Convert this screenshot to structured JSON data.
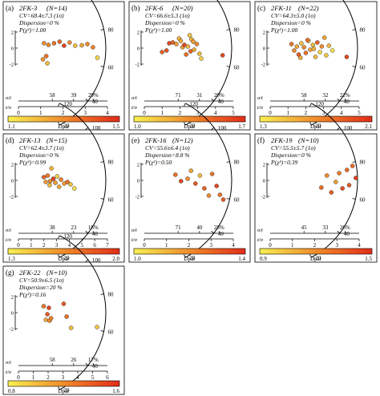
{
  "chart_data": [
    {
      "type": "scatter",
      "panel": "a",
      "title": "2FK-3",
      "n": "(N=14)",
      "cv": "CV=68.4±7.3 (1σ)",
      "dispersion": "Dispersion=0 %",
      "pchi": "P(χ²)=1.00",
      "y_ticks": [
        "2",
        "0",
        "-2"
      ],
      "y_axis_label": "σ/t",
      "x_axis_label": "t/σ",
      "x_ticks": [
        "0",
        "1",
        "2",
        "3",
        "4"
      ],
      "x_max": 4,
      "radial_ticks": [
        "120",
        "100",
        "80",
        "60",
        "40",
        "20"
      ],
      "radial_values": [
        120,
        100,
        80,
        60,
        40,
        20
      ],
      "radial_min": 20,
      "radial_max": 120,
      "pct_ticks": [
        "58",
        "39",
        "29%"
      ],
      "pct_values": [
        58,
        39,
        29
      ],
      "colorbar": {
        "min_label": "1.1",
        "max_label": "1.5",
        "title": "Dpar",
        "min": 1.1,
        "max": 1.5
      },
      "points": [
        {
          "x": 1.15,
          "y": 0.6,
          "c": 1.3
        },
        {
          "x": 1.35,
          "y": 0.4,
          "c": 1.3
        },
        {
          "x": 1.6,
          "y": 0.6,
          "c": 1.35
        },
        {
          "x": 1.85,
          "y": 0.8,
          "c": 1.38
        },
        {
          "x": 2.05,
          "y": 0.3,
          "c": 1.45
        },
        {
          "x": 2.3,
          "y": 0.7,
          "c": 1.3
        },
        {
          "x": 2.55,
          "y": 0.3,
          "c": 1.2
        },
        {
          "x": 2.85,
          "y": 0.35,
          "c": 1.25
        },
        {
          "x": 3.1,
          "y": 0.5,
          "c": 1.3
        },
        {
          "x": 3.35,
          "y": 0.1,
          "c": 1.32
        },
        {
          "x": 3.55,
          "y": -1.2,
          "c": 1.15
        },
        {
          "x": 1.25,
          "y": -1.0,
          "c": 1.35
        },
        {
          "x": 1.1,
          "y": -1.4,
          "c": 1.28
        },
        {
          "x": 1.3,
          "y": -1.9,
          "c": 1.2
        }
      ]
    },
    {
      "type": "scatter",
      "panel": "b",
      "title": "2FK-6",
      "n": "(N=20)",
      "cv": "CV=66.6±5.3 (1σ)",
      "dispersion": "Dispersion=0 %",
      "pchi": "P(χ²)=1.00",
      "y_ticks": [
        "2",
        "0",
        "-2"
      ],
      "y_axis_label": "σ/t",
      "x_axis_label": "t/σ",
      "x_ticks": [
        "0",
        "1",
        "2",
        "3",
        "4",
        "5"
      ],
      "x_max": 5,
      "radial_ticks": [
        "120",
        "100",
        "80",
        "60",
        "40",
        "20"
      ],
      "radial_values": [
        120,
        100,
        80,
        60,
        40,
        20
      ],
      "radial_min": 20,
      "radial_max": 120,
      "pct_ticks": [
        "71",
        "31",
        "20%"
      ],
      "pct_values": [
        71,
        31,
        20
      ],
      "colorbar": {
        "min_label": "1.0",
        "max_label": "1.7",
        "title": "Dpar",
        "min": 1.0,
        "max": 1.7
      },
      "points": [
        {
          "x": 1.0,
          "y": -0.5,
          "c": 1.5
        },
        {
          "x": 1.25,
          "y": -0.3,
          "c": 1.55
        },
        {
          "x": 1.4,
          "y": 0.6,
          "c": 1.6
        },
        {
          "x": 1.6,
          "y": 0.7,
          "c": 1.5
        },
        {
          "x": 1.8,
          "y": 0.5,
          "c": 1.3
        },
        {
          "x": 1.95,
          "y": 1.2,
          "c": 1.2
        },
        {
          "x": 2.05,
          "y": 0.9,
          "c": 1.25
        },
        {
          "x": 2.15,
          "y": 0.1,
          "c": 1.3
        },
        {
          "x": 2.25,
          "y": 0.4,
          "c": 1.6
        },
        {
          "x": 2.35,
          "y": -0.8,
          "c": 1.45
        },
        {
          "x": 2.45,
          "y": 0.2,
          "c": 1.2
        },
        {
          "x": 2.55,
          "y": 1.6,
          "c": 1.15
        },
        {
          "x": 2.65,
          "y": 1.1,
          "c": 1.2
        },
        {
          "x": 2.75,
          "y": 0.8,
          "c": 1.3
        },
        {
          "x": 2.8,
          "y": -0.2,
          "c": 1.25
        },
        {
          "x": 2.95,
          "y": 0.5,
          "c": 1.35
        },
        {
          "x": 3.1,
          "y": -0.7,
          "c": 1.2
        },
        {
          "x": 3.2,
          "y": -1.3,
          "c": 1.1
        },
        {
          "x": 2.6,
          "y": -0.4,
          "c": 1.5
        },
        {
          "x": 4.4,
          "y": -0.9,
          "c": 1.6
        }
      ]
    },
    {
      "type": "scatter",
      "panel": "c",
      "title": "2FK-11",
      "n": "(N=22)",
      "cv": "CV=64.3±5.0 (1σ)",
      "dispersion": "Dispersion=0 %",
      "pchi": "P(χ²)=1.00",
      "y_ticks": [
        "2",
        "0",
        "-2"
      ],
      "y_axis_label": "σ/t",
      "x_axis_label": "t/σ",
      "x_ticks": [
        "0",
        "1",
        "2",
        "3",
        "4",
        "5"
      ],
      "x_max": 5,
      "radial_ticks": [
        "120",
        "100",
        "80",
        "60",
        "40",
        "20"
      ],
      "radial_values": [
        120,
        100,
        80,
        60,
        40,
        20
      ],
      "radial_min": 20,
      "radial_max": 120,
      "pct_ticks": [
        "58",
        "32",
        "22%"
      ],
      "pct_values": [
        58,
        32,
        22
      ],
      "colorbar": {
        "min_label": "1.3",
        "max_label": "2.1",
        "title": "Dpar",
        "min": 1.3,
        "max": 2.1
      },
      "points": [
        {
          "x": 1.2,
          "y": 0.5,
          "c": 1.8
        },
        {
          "x": 1.35,
          "y": -0.3,
          "c": 1.7
        },
        {
          "x": 1.5,
          "y": 0.2,
          "c": 1.6
        },
        {
          "x": 1.6,
          "y": -0.8,
          "c": 1.9
        },
        {
          "x": 1.75,
          "y": 0.6,
          "c": 1.5
        },
        {
          "x": 1.9,
          "y": 0.1,
          "c": 1.7
        },
        {
          "x": 2.0,
          "y": -0.6,
          "c": 1.8
        },
        {
          "x": 2.15,
          "y": 0.9,
          "c": 1.4
        },
        {
          "x": 2.25,
          "y": -0.2,
          "c": 1.6
        },
        {
          "x": 2.4,
          "y": 0.4,
          "c": 1.5
        },
        {
          "x": 2.55,
          "y": -1.1,
          "c": 1.5
        },
        {
          "x": 2.65,
          "y": 0.7,
          "c": 1.9
        },
        {
          "x": 2.8,
          "y": -0.5,
          "c": 1.4
        },
        {
          "x": 2.9,
          "y": 0.2,
          "c": 1.7
        },
        {
          "x": 3.05,
          "y": 1.3,
          "c": 1.6
        },
        {
          "x": 3.15,
          "y": -0.9,
          "c": 1.45
        },
        {
          "x": 3.3,
          "y": 0.3,
          "c": 1.5
        },
        {
          "x": 1.7,
          "y": -1.2,
          "c": 1.6
        },
        {
          "x": 2.1,
          "y": 1.0,
          "c": 1.8
        },
        {
          "x": 2.45,
          "y": -0.1,
          "c": 1.55
        },
        {
          "x": 3.5,
          "y": -0.3,
          "c": 1.35
        },
        {
          "x": 4.3,
          "y": -1.1,
          "c": 2.0
        }
      ]
    },
    {
      "type": "scatter",
      "panel": "d",
      "title": "2FK-13",
      "n": "(N=15)",
      "cv": "CV=62.4±3.7 (1σ)",
      "dispersion": "Dispersion=0 %",
      "pchi": "P(χ²)=0.99",
      "y_ticks": [
        "2",
        "0",
        "-2"
      ],
      "y_axis_label": "σ/t",
      "x_axis_label": "t/σ",
      "x_ticks": [
        "0",
        "1",
        "2",
        "3",
        "4",
        "5",
        "6",
        "7"
      ],
      "x_max": 7,
      "radial_ticks": [
        "120",
        "100",
        "80",
        "60",
        "40",
        "20"
      ],
      "radial_values": [
        120,
        100,
        80,
        60,
        40,
        20
      ],
      "radial_min": 20,
      "radial_max": 120,
      "pct_ticks": [
        "38",
        "23",
        "16%"
      ],
      "pct_values": [
        38,
        23,
        16
      ],
      "colorbar": {
        "min_label": "1.3",
        "max_label": "2.0",
        "title": "Dpar",
        "min": 1.3,
        "max": 2.0
      },
      "points": [
        {
          "x": 2.0,
          "y": 0.4,
          "c": 1.8
        },
        {
          "x": 2.15,
          "y": -0.2,
          "c": 1.6
        },
        {
          "x": 2.3,
          "y": 0.6,
          "c": 1.7
        },
        {
          "x": 2.45,
          "y": -0.6,
          "c": 1.5
        },
        {
          "x": 2.6,
          "y": 1.5,
          "c": 1.5
        },
        {
          "x": 2.75,
          "y": 0.2,
          "c": 1.9
        },
        {
          "x": 2.9,
          "y": -0.3,
          "c": 1.6
        },
        {
          "x": 3.05,
          "y": 0.5,
          "c": 1.4
        },
        {
          "x": 3.2,
          "y": -0.8,
          "c": 1.55
        },
        {
          "x": 3.35,
          "y": 0.1,
          "c": 1.7
        },
        {
          "x": 3.6,
          "y": -0.4,
          "c": 1.6
        },
        {
          "x": 3.85,
          "y": -0.2,
          "c": 1.75
        },
        {
          "x": 4.1,
          "y": -0.5,
          "c": 1.45
        },
        {
          "x": 4.4,
          "y": -1.0,
          "c": 1.35
        },
        {
          "x": 2.5,
          "y": -0.1,
          "c": 1.65
        }
      ]
    },
    {
      "type": "scatter",
      "panel": "e",
      "title": "2FK-16",
      "n": "(N=12)",
      "cv": "CV=55.6±6.4 (1σ)",
      "dispersion": "Dispersion=8.8 %",
      "pchi": "P(χ²)=0.50",
      "y_ticks": [
        "2",
        "0",
        "-2"
      ],
      "y_axis_label": "σ/t",
      "x_axis_label": "t/σ",
      "x_ticks": [
        "0",
        "1",
        "2",
        "3",
        "4"
      ],
      "x_max": 4,
      "radial_ticks": [
        "120",
        "100",
        "80",
        "60",
        "40",
        "20"
      ],
      "radial_values": [
        120,
        100,
        80,
        60,
        40,
        20
      ],
      "radial_min": 20,
      "radial_max": 120,
      "pct_ticks": [
        "71",
        "40",
        "28%"
      ],
      "pct_values": [
        71,
        40,
        28
      ],
      "colorbar": {
        "min_label": "1.0",
        "max_label": "1.4",
        "title": "Dpar",
        "min": 1.0,
        "max": 1.4
      },
      "points": [
        {
          "x": 1.4,
          "y": 0.7,
          "c": 1.25
        },
        {
          "x": 1.65,
          "y": -0.1,
          "c": 1.35
        },
        {
          "x": 1.95,
          "y": 0.2,
          "c": 1.2
        },
        {
          "x": 2.1,
          "y": 1.2,
          "c": 1.15
        },
        {
          "x": 2.3,
          "y": -0.4,
          "c": 1.3
        },
        {
          "x": 2.5,
          "y": 0.6,
          "c": 1.1
        },
        {
          "x": 2.7,
          "y": -1.0,
          "c": 1.3
        },
        {
          "x": 2.9,
          "y": -1.9,
          "c": 1.2
        },
        {
          "x": 3.05,
          "y": 0.8,
          "c": 1.25
        },
        {
          "x": 3.25,
          "y": -0.7,
          "c": 1.35
        },
        {
          "x": 3.4,
          "y": -1.8,
          "c": 1.25
        },
        {
          "x": 3.55,
          "y": -2.4,
          "c": 1.3
        }
      ]
    },
    {
      "type": "scatter",
      "panel": "f",
      "title": "2FK-19",
      "n": "(N=10)",
      "cv": "CV=55.5±5.7 (1σ)",
      "dispersion": "Dispersion=0 %",
      "pchi": "P(χ²)=0.39",
      "y_ticks": [
        "2",
        "0",
        "-2"
      ],
      "y_axis_label": "σ/t",
      "x_axis_label": "t/σ",
      "x_ticks": [
        "0",
        "1",
        "2",
        "3",
        "4"
      ],
      "x_max": 4,
      "radial_ticks": [
        "120",
        "100",
        "80",
        "60",
        "40",
        "20"
      ],
      "radial_values": [
        120,
        100,
        80,
        60,
        40,
        20
      ],
      "radial_min": 20,
      "radial_max": 120,
      "pct_ticks": [
        "45",
        "33",
        "26%"
      ],
      "pct_values": [
        45,
        33,
        26
      ],
      "colorbar": {
        "min_label": "0.9",
        "max_label": "1.5",
        "title": "Dpar",
        "min": 0.9,
        "max": 1.5
      },
      "points": [
        {
          "x": 2.3,
          "y": -0.9,
          "c": 1.3
        },
        {
          "x": 2.55,
          "y": 0.6,
          "c": 1.2
        },
        {
          "x": 2.75,
          "y": -1.5,
          "c": 1.35
        },
        {
          "x": 2.95,
          "y": -0.2,
          "c": 1.15
        },
        {
          "x": 3.1,
          "y": 0.9,
          "c": 1.25
        },
        {
          "x": 3.25,
          "y": -1.0,
          "c": 1.4
        },
        {
          "x": 3.45,
          "y": 1.3,
          "c": 1.3
        },
        {
          "x": 3.55,
          "y": -0.6,
          "c": 1.35
        },
        {
          "x": 3.7,
          "y": 1.8,
          "c": 1.3
        },
        {
          "x": 3.85,
          "y": 0.3,
          "c": 1.45
        }
      ]
    },
    {
      "type": "scatter",
      "panel": "g",
      "title": "2FK-22",
      "n": "(N=10)",
      "cv": "CV=50.9±6.5 (1σ)",
      "dispersion": "Dispersion=20 %",
      "pchi": "P(χ²)=0.16",
      "y_ticks": [
        "2",
        "0",
        "-2"
      ],
      "y_axis_label": "σ/t",
      "x_axis_label": "t/σ",
      "x_ticks": [
        "0",
        "1",
        "2",
        "3",
        "4",
        "5",
        "6"
      ],
      "x_max": 6,
      "radial_ticks": [
        "120",
        "100",
        "80",
        "60",
        "40",
        "20"
      ],
      "radial_values": [
        120,
        100,
        80,
        60,
        40,
        20
      ],
      "radial_min": 20,
      "radial_max": 120,
      "pct_ticks": [
        "58",
        "26",
        "17%"
      ],
      "pct_values": [
        58,
        26,
        17
      ],
      "colorbar": {
        "min_label": "0.8",
        "max_label": "1.6",
        "title": "Dpar",
        "min": 0.8,
        "max": 1.6
      },
      "points": [
        {
          "x": 1.7,
          "y": 0.8,
          "c": 1.3
        },
        {
          "x": 1.85,
          "y": -0.9,
          "c": 1.1
        },
        {
          "x": 1.95,
          "y": -0.2,
          "c": 1.4
        },
        {
          "x": 2.05,
          "y": 0.6,
          "c": 1.5
        },
        {
          "x": 2.1,
          "y": -1.0,
          "c": 1.2
        },
        {
          "x": 2.2,
          "y": -0.7,
          "c": 1.25
        },
        {
          "x": 3.05,
          "y": 1.1,
          "c": 1.4
        },
        {
          "x": 3.25,
          "y": -0.5,
          "c": 1.3
        },
        {
          "x": 3.55,
          "y": -1.9,
          "c": 1.0
        },
        {
          "x": 5.3,
          "y": -1.8,
          "c": 0.95
        }
      ]
    }
  ]
}
